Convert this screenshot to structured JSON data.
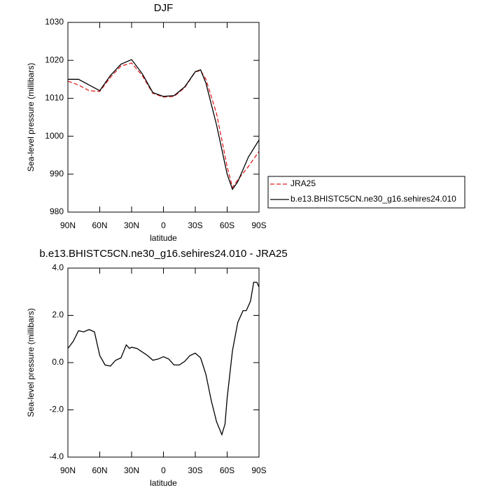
{
  "chart_data": [
    {
      "type": "line",
      "title": "DJF",
      "xlabel": "latitude",
      "ylabel": "Sea-level pressure (millibars)",
      "x": [
        90,
        80,
        70,
        60,
        50,
        40,
        30,
        20,
        10,
        0,
        -10,
        -20,
        -30,
        -35,
        -40,
        -50,
        -60,
        -65,
        -70,
        -80,
        -90
      ],
      "series": [
        {
          "name": "JRA25",
          "color": "#e02020",
          "dashed": true,
          "values": [
            1014.5,
            1013.5,
            1012,
            1011.8,
            1015.5,
            1018.5,
            1019.3,
            1016,
            1011.3,
            1010.3,
            1010.5,
            1012.8,
            1017,
            1017.3,
            1015,
            1006,
            992,
            986.5,
            988.5,
            992,
            996
          ]
        },
        {
          "name": "b.e13.BHISTC5CN.ne30_g16.sehires24.010",
          "color": "#000000",
          "dashed": false,
          "values": [
            1015,
            1015,
            1013.5,
            1012,
            1016,
            1019,
            1020.2,
            1016.5,
            1011.5,
            1010.5,
            1010.7,
            1013,
            1017,
            1017.5,
            1014,
            1003,
            990,
            986,
            988,
            994.5,
            999
          ]
        }
      ],
      "xlim": [
        90,
        -90
      ],
      "xticks": [
        {
          "value": 90,
          "label": "90N"
        },
        {
          "value": 60,
          "label": "60N"
        },
        {
          "value": 30,
          "label": "30N"
        },
        0,
        {
          "value": -30,
          "label": "30S"
        },
        {
          "value": -60,
          "label": "60S"
        },
        {
          "value": -90,
          "label": "90S"
        }
      ],
      "ylim": [
        980,
        1030
      ],
      "yticks": [
        980,
        990,
        1000,
        1010,
        1020,
        1030
      ],
      "legend": "right"
    },
    {
      "type": "line",
      "title": "b.e13.BHISTC5CN.ne30_g16.sehires24.010 - JRA25",
      "xlabel": "latitude",
      "ylabel": "Sea-level pressure (millibars)",
      "x": [
        90,
        85,
        80,
        75,
        70,
        65,
        60,
        55,
        50,
        45,
        40,
        35,
        32,
        30,
        25,
        20,
        15,
        10,
        5,
        0,
        -5,
        -10,
        -15,
        -20,
        -25,
        -30,
        -35,
        -40,
        -45,
        -50,
        -55,
        -58,
        -60,
        -65,
        -70,
        -75,
        -78,
        -82,
        -85,
        -88,
        -90
      ],
      "series": [
        {
          "color": "#000000",
          "dashed": false,
          "values": [
            0.6,
            0.9,
            1.35,
            1.3,
            1.4,
            1.3,
            0.3,
            -0.1,
            -0.15,
            0.1,
            0.2,
            0.75,
            0.6,
            0.65,
            0.6,
            0.45,
            0.3,
            0.1,
            0.15,
            0.25,
            0.15,
            -0.1,
            -0.1,
            0.05,
            0.3,
            0.4,
            0.2,
            -0.5,
            -1.6,
            -2.5,
            -3.05,
            -2.6,
            -1.5,
            0.5,
            1.7,
            2.2,
            2.2,
            2.6,
            3.4,
            3.4,
            3.2
          ]
        }
      ],
      "xlim": [
        90,
        -90
      ],
      "xticks": [
        {
          "value": 90,
          "label": "90N"
        },
        {
          "value": 60,
          "label": "60N"
        },
        {
          "value": 30,
          "label": "30N"
        },
        0,
        {
          "value": -30,
          "label": "30S"
        },
        {
          "value": -60,
          "label": "60S"
        },
        {
          "value": -90,
          "label": "90S"
        }
      ],
      "ylim": [
        -4,
        4
      ],
      "yticks": [
        {
          "value": -4,
          "label": "-4.0"
        },
        {
          "value": -2,
          "label": "-2.0"
        },
        {
          "value": 0,
          "label": "0.0"
        },
        {
          "value": 2,
          "label": "2.0"
        },
        {
          "value": 4,
          "label": "4.0"
        }
      ]
    }
  ]
}
